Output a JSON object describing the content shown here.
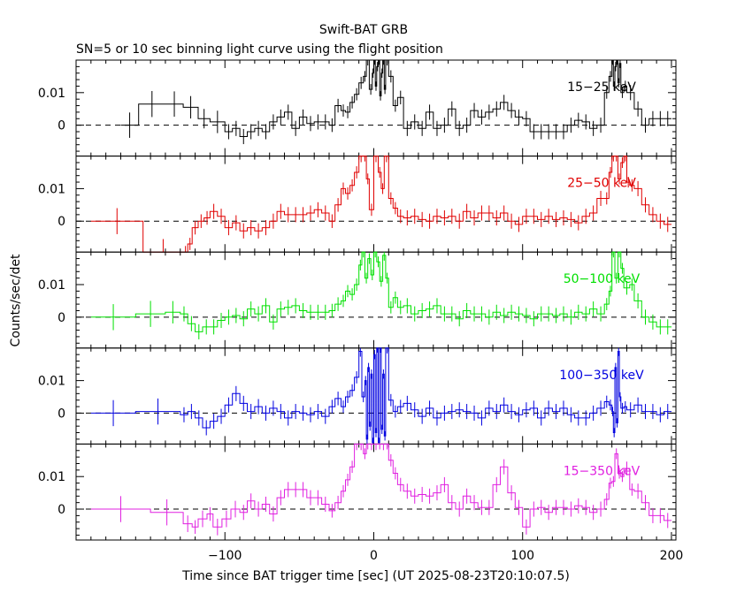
{
  "chart_data": {
    "type": "line",
    "title": "Swift-BAT GRB",
    "subtitle": "SN=5 or 10 sec binning light curve using the flight position",
    "xlabel": "Time since BAT trigger time [sec] (UT 2025-08-23T20:10:07.5)",
    "ylabel": "Counts/sec/det",
    "xlim": [
      -200,
      203
    ],
    "x_ticks": [
      -100,
      0,
      100,
      200
    ],
    "x_tick_labels": [
      "−100",
      "0",
      "100",
      "200"
    ],
    "ylim": [
      -0.0095,
      0.02
    ],
    "y_ticks": [
      0,
      0.01
    ],
    "y_tick_labels": [
      "0",
      "0.01"
    ],
    "zero_line": "dashed",
    "grid": false,
    "panels": [
      {
        "name": "15−25 keV",
        "color": "#000000",
        "x": [
          -170,
          -158,
          -140,
          -128,
          -118,
          -110,
          -100,
          -95,
          -90,
          -85,
          -80,
          -75,
          -70,
          -65,
          -60,
          -55,
          -50,
          -45,
          -40,
          -35,
          -30,
          -26,
          -22,
          -19,
          -16,
          -13,
          -10,
          -7,
          -5,
          -3,
          -1,
          0,
          1,
          2,
          3,
          4,
          5,
          6,
          7,
          8,
          10,
          13,
          16,
          20,
          25,
          30,
          35,
          40,
          45,
          50,
          55,
          60,
          65,
          70,
          75,
          80,
          85,
          90,
          95,
          100,
          105,
          110,
          115,
          120,
          125,
          130,
          135,
          140,
          145,
          150,
          155,
          158,
          160,
          161,
          162,
          163,
          164,
          165,
          166,
          168,
          170,
          175,
          180,
          185,
          190,
          195
        ],
        "y": [
          0,
          0.0065,
          0.0065,
          0.0055,
          0.002,
          0.001,
          -0.002,
          -0.001,
          -0.0035,
          -0.002,
          -0.001,
          -0.002,
          0.001,
          0.0025,
          0.004,
          -0.001,
          0.0025,
          0.0005,
          0.001,
          0.001,
          0.0,
          0.006,
          0.0045,
          0.004,
          0.007,
          0.0095,
          0.013,
          0.015,
          0.02,
          0.011,
          0.016,
          0.02,
          0.012,
          0.018,
          0.02,
          0.009,
          0.016,
          0.02,
          0.011,
          0.02,
          0.015,
          0.006,
          0.0085,
          -0.001,
          0.001,
          -0.001,
          0.004,
          -0.001,
          0.0,
          0.005,
          -0.001,
          0.0,
          0.0045,
          0.0025,
          0.004,
          0.005,
          0.007,
          0.0045,
          0.0025,
          0.002,
          -0.002,
          -0.002,
          -0.002,
          -0.002,
          -0.002,
          0.0,
          0.0015,
          0.001,
          -0.001,
          0.0,
          0.01,
          0.015,
          0.02,
          0.012,
          0.018,
          0.02,
          0.013,
          0.019,
          0.01,
          0.012,
          0.01,
          0.005,
          0.0,
          0.002,
          0.002,
          0.002
        ]
      },
      {
        "name": "25−50 keV",
        "color": "#e00000",
        "x": [
          -190,
          -155,
          -128,
          -125,
          -122,
          -118,
          -114,
          -110,
          -105,
          -100,
          -95,
          -90,
          -85,
          -80,
          -75,
          -70,
          -65,
          -60,
          -55,
          -50,
          -45,
          -40,
          -35,
          -30,
          -26,
          -22,
          -19,
          -16,
          -13,
          -10,
          -7,
          -5,
          -3,
          0,
          3,
          5,
          7,
          10,
          13,
          16,
          20,
          25,
          30,
          35,
          40,
          45,
          50,
          55,
          60,
          65,
          70,
          75,
          80,
          85,
          90,
          95,
          100,
          105,
          110,
          115,
          120,
          125,
          130,
          135,
          140,
          145,
          150,
          155,
          158,
          160,
          162,
          164,
          166,
          168,
          170,
          172,
          175,
          180,
          185,
          190,
          195
        ],
        "y": [
          0,
          -0.0095,
          -0.0095,
          -0.007,
          -0.002,
          0.0,
          0.001,
          0.003,
          0.0015,
          -0.002,
          -0.0005,
          -0.003,
          -0.002,
          -0.003,
          -0.002,
          0.0,
          0.003,
          0.002,
          0.002,
          0.002,
          0.0025,
          0.0035,
          0.0025,
          0.0,
          0.005,
          0.01,
          0.0085,
          0.011,
          0.015,
          0.02,
          0.02,
          0.013,
          0.0035,
          0.02,
          0.015,
          0.01,
          0.02,
          0.007,
          0.004,
          0.0015,
          0.001,
          0.0015,
          0.0005,
          0.0,
          0.0015,
          0.001,
          0.0015,
          0.0,
          0.003,
          0.001,
          0.0025,
          0.0025,
          0.001,
          0.0025,
          0.0,
          -0.001,
          0.0015,
          0.0015,
          0.0005,
          0.0015,
          0.0005,
          0.001,
          0.0005,
          -0.0005,
          0.0015,
          0.0025,
          0.007,
          0.007,
          0.015,
          0.02,
          0.02,
          0.013,
          0.018,
          0.02,
          0.012,
          0.011,
          0.01,
          0.005,
          0.002,
          0.0,
          -0.001
        ]
      },
      {
        "name": "50−100 keV",
        "color": "#00e000",
        "x": [
          -190,
          -160,
          -140,
          -130,
          -125,
          -120,
          -115,
          -110,
          -105,
          -100,
          -95,
          -90,
          -85,
          -80,
          -75,
          -70,
          -65,
          -60,
          -55,
          -50,
          -45,
          -40,
          -35,
          -30,
          -26,
          -22,
          -19,
          -16,
          -13,
          -10,
          -8,
          -6,
          -4,
          -2,
          0,
          2,
          4,
          6,
          8,
          10,
          13,
          16,
          20,
          25,
          30,
          35,
          40,
          45,
          50,
          55,
          60,
          65,
          70,
          75,
          80,
          85,
          90,
          95,
          100,
          105,
          110,
          115,
          120,
          125,
          130,
          135,
          140,
          145,
          150,
          155,
          158,
          160,
          162,
          164,
          166,
          168,
          172,
          175,
          180,
          185,
          190,
          195
        ],
        "y": [
          0,
          0.001,
          0.0015,
          0.001,
          -0.002,
          -0.0045,
          -0.003,
          -0.003,
          -0.001,
          0.0,
          0.0005,
          -0.0005,
          0.0025,
          0.001,
          0.0035,
          -0.0015,
          0.0025,
          0.003,
          0.0035,
          0.002,
          0.0015,
          0.0015,
          0.0015,
          0.002,
          0.004,
          0.005,
          0.008,
          0.007,
          0.01,
          0.016,
          0.02,
          0.012,
          0.018,
          0.013,
          0.02,
          0.017,
          0.011,
          0.019,
          0.012,
          0.003,
          0.006,
          0.003,
          0.0035,
          0.001,
          0.002,
          0.0025,
          0.0035,
          0.001,
          0.001,
          -0.0005,
          0.002,
          0.001,
          0.001,
          0.0,
          0.0015,
          0.0005,
          0.0015,
          0.001,
          0.0005,
          -0.0005,
          0.001,
          0.001,
          0.0005,
          0.001,
          0.0,
          0.0015,
          0.001,
          0.0025,
          0.001,
          0.004,
          0.008,
          0.02,
          0.012,
          0.02,
          0.015,
          0.009,
          0.01,
          0.005,
          0.0,
          -0.0015,
          -0.003,
          -0.003
        ]
      },
      {
        "name": "100−350 keV",
        "color": "#0000e0",
        "x": [
          -190,
          -160,
          -130,
          -125,
          -120,
          -115,
          -110,
          -105,
          -100,
          -95,
          -90,
          -85,
          -80,
          -75,
          -70,
          -65,
          -60,
          -55,
          -50,
          -45,
          -40,
          -35,
          -30,
          -26,
          -22,
          -19,
          -16,
          -13,
          -10,
          -8,
          -6,
          -5,
          -4,
          -3,
          -2,
          -1,
          0,
          1,
          2,
          3,
          4,
          5,
          6,
          7,
          8,
          10,
          13,
          16,
          20,
          25,
          30,
          35,
          40,
          45,
          50,
          55,
          60,
          65,
          70,
          75,
          80,
          85,
          90,
          95,
          100,
          105,
          110,
          115,
          120,
          125,
          130,
          135,
          140,
          145,
          150,
          155,
          158,
          160,
          161,
          162,
          163,
          164,
          165,
          166,
          168,
          170,
          175,
          180,
          185,
          190,
          195
        ],
        "y": [
          0,
          0.0005,
          -0.0005,
          0.0005,
          -0.0015,
          -0.0045,
          -0.0025,
          -0.001,
          0.0025,
          0.006,
          0.003,
          0.0005,
          0.002,
          0.0,
          0.0015,
          0.0005,
          -0.0015,
          0.0005,
          0.0,
          -0.0005,
          0.0005,
          -0.001,
          0.002,
          0.0045,
          0.002,
          0.005,
          0.007,
          0.011,
          0.019,
          0.005,
          0.01,
          -0.008,
          0.014,
          -0.004,
          0.012,
          -0.009,
          0.018,
          -0.006,
          0.02,
          -0.009,
          0.02,
          -0.005,
          0.012,
          -0.007,
          0.02,
          0.004,
          0.0005,
          0.002,
          0.003,
          0.001,
          -0.001,
          0.0015,
          -0.0015,
          0.0,
          0.0005,
          0.001,
          0.0005,
          0.0,
          -0.0015,
          0.0015,
          0.0005,
          0.0025,
          0.0005,
          -0.0005,
          0.001,
          0.0015,
          -0.0015,
          0.0015,
          0.0005,
          0.0015,
          -0.0005,
          -0.0015,
          -0.0015,
          0.0,
          0.0015,
          0.0035,
          0.0025,
          0.0005,
          -0.006,
          0.014,
          -0.003,
          0.019,
          0.005,
          0.0015,
          0.002,
          0.001,
          0.0025,
          0.0005,
          0.0005,
          -0.0005,
          0.0005
        ]
      },
      {
        "name": "15−350 keV",
        "color": "#e020e0",
        "x": [
          -190,
          -150,
          -128,
          -122,
          -118,
          -112,
          -108,
          -102,
          -96,
          -90,
          -85,
          -80,
          -75,
          -70,
          -65,
          -60,
          -55,
          -50,
          -45,
          -40,
          -35,
          -30,
          -26,
          -22,
          -19,
          -16,
          -13,
          -10,
          -7,
          -5,
          -3,
          0,
          3,
          5,
          8,
          10,
          13,
          16,
          20,
          25,
          30,
          35,
          40,
          45,
          50,
          55,
          60,
          65,
          70,
          75,
          80,
          85,
          90,
          95,
          100,
          105,
          110,
          115,
          120,
          125,
          130,
          135,
          140,
          145,
          150,
          155,
          158,
          160,
          162,
          164,
          166,
          168,
          172,
          175,
          180,
          185,
          190,
          195
        ],
        "y": [
          0,
          -0.001,
          -0.0045,
          -0.0055,
          -0.003,
          -0.0015,
          -0.0055,
          -0.003,
          0.0,
          -0.001,
          0.0025,
          0.0,
          0.0015,
          -0.0015,
          0.0035,
          0.006,
          0.006,
          0.006,
          0.0035,
          0.0035,
          0.0015,
          -0.0005,
          0.002,
          0.0055,
          0.009,
          0.013,
          0.02,
          0.02,
          0.017,
          0.02,
          0.02,
          0.02,
          0.02,
          0.02,
          0.02,
          0.015,
          0.011,
          0.0075,
          0.0055,
          0.004,
          0.0045,
          0.004,
          0.005,
          0.0075,
          0.002,
          0.0,
          0.004,
          0.002,
          0.0005,
          0.0005,
          0.0075,
          0.013,
          0.005,
          0.0005,
          -0.0055,
          0.0,
          0.0005,
          -0.001,
          0.0005,
          0.0005,
          0.0,
          0.001,
          0.0005,
          -0.001,
          0.0,
          0.003,
          0.008,
          0.0085,
          0.017,
          0.011,
          0.01,
          0.0125,
          0.006,
          0.0055,
          0.002,
          -0.002,
          -0.002,
          -0.0035
        ]
      }
    ]
  }
}
